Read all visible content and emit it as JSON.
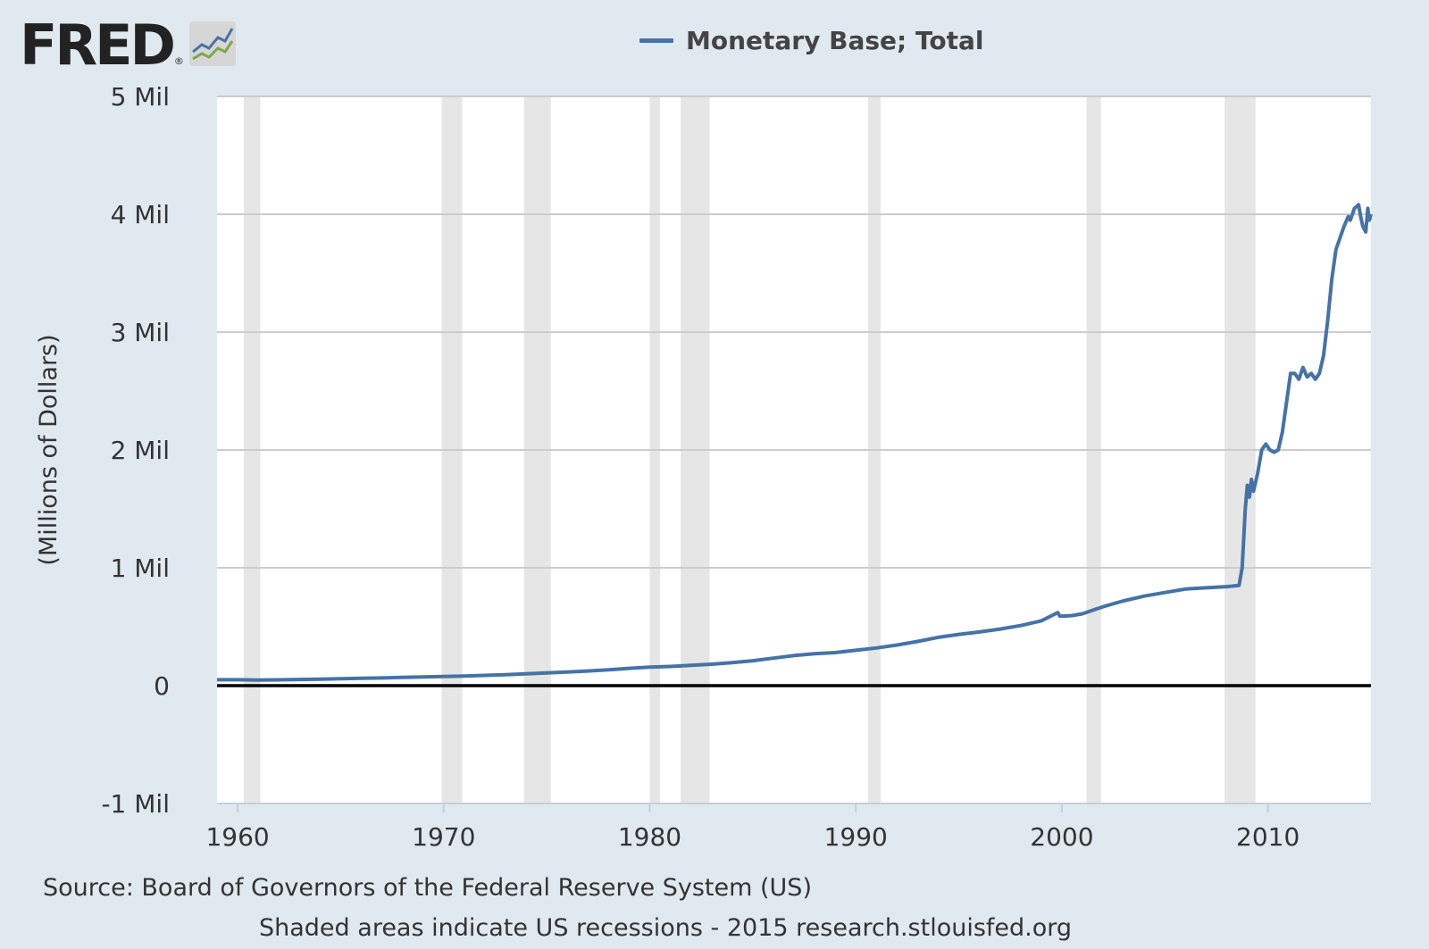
{
  "brand": {
    "name": "FRED",
    "registered_mark": "®",
    "icon": "fred-line-chart-icon"
  },
  "colors": {
    "background": "#e1e9f0",
    "plot_background": "#ffffff",
    "series_line": "#4572a7",
    "recession_shade": "#e6e6e6",
    "gridline": "#cccccc",
    "zero_line": "#000000"
  },
  "chart_data": {
    "type": "line",
    "legend_position": "top-center",
    "grid": true,
    "xlim": [
      1959.0,
      2015.0
    ],
    "ylim": [
      -1000000,
      5000000
    ],
    "y_ticks": [
      {
        "value": 5000000,
        "label": "5 Mil"
      },
      {
        "value": 4000000,
        "label": "4 Mil"
      },
      {
        "value": 3000000,
        "label": "3 Mil"
      },
      {
        "value": 2000000,
        "label": "2 Mil"
      },
      {
        "value": 1000000,
        "label": "1 Mil"
      },
      {
        "value": 0,
        "label": "0"
      },
      {
        "value": -1000000,
        "label": "-1 Mil"
      }
    ],
    "x_ticks": [
      {
        "value": 1960,
        "label": "1960"
      },
      {
        "value": 1970,
        "label": "1970"
      },
      {
        "value": 1980,
        "label": "1980"
      },
      {
        "value": 1990,
        "label": "1990"
      },
      {
        "value": 2000,
        "label": "2000"
      },
      {
        "value": 2010,
        "label": "2010"
      }
    ],
    "ylabel": "(Millions of Dollars)",
    "recessions": [
      [
        1960.3,
        1961.1
      ],
      [
        1969.9,
        1970.9
      ],
      [
        1973.9,
        1975.2
      ],
      [
        1980.0,
        1980.5
      ],
      [
        1981.5,
        1982.9
      ],
      [
        1990.6,
        1991.2
      ],
      [
        2001.2,
        2001.9
      ],
      [
        2007.9,
        2009.4
      ]
    ],
    "series": [
      {
        "name": "Monetary Base; Total",
        "x": [
          1959.0,
          1960.0,
          1961.0,
          1962.0,
          1963.0,
          1964.0,
          1965.0,
          1966.0,
          1967.0,
          1968.0,
          1969.0,
          1970.0,
          1971.0,
          1972.0,
          1973.0,
          1974.0,
          1975.0,
          1976.0,
          1977.0,
          1978.0,
          1979.0,
          1980.0,
          1981.0,
          1982.0,
          1983.0,
          1984.0,
          1985.0,
          1986.0,
          1987.0,
          1988.0,
          1989.0,
          1990.0,
          1991.0,
          1992.0,
          1993.0,
          1994.0,
          1995.0,
          1996.0,
          1997.0,
          1998.0,
          1999.0,
          1999.8,
          1999.9,
          2000.1,
          2000.5,
          2001.0,
          2001.5,
          2002.0,
          2003.0,
          2004.0,
          2005.0,
          2006.0,
          2007.0,
          2008.0,
          2008.6,
          2008.75,
          2008.9,
          2009.0,
          2009.1,
          2009.2,
          2009.3,
          2009.5,
          2009.7,
          2009.9,
          2010.1,
          2010.3,
          2010.5,
          2010.7,
          2010.9,
          2011.1,
          2011.3,
          2011.5,
          2011.7,
          2011.9,
          2012.1,
          2012.3,
          2012.5,
          2012.7,
          2012.9,
          2013.1,
          2013.3,
          2013.5,
          2013.7,
          2013.9,
          2014.0,
          2014.2,
          2014.4,
          2014.5,
          2014.6,
          2014.75,
          2014.85,
          2014.92,
          2015.0
        ],
        "values": [
          50000,
          50000,
          47000,
          49000,
          52000,
          55000,
          59000,
          62000,
          65000,
          70000,
          74000,
          77000,
          82000,
          87000,
          93000,
          101000,
          108000,
          115000,
          124000,
          135000,
          147000,
          157000,
          163000,
          172000,
          182000,
          195000,
          211000,
          233000,
          255000,
          271000,
          280000,
          300000,
          320000,
          345000,
          375000,
          410000,
          435000,
          455000,
          480000,
          510000,
          550000,
          620000,
          590000,
          590000,
          595000,
          610000,
          640000,
          670000,
          720000,
          760000,
          790000,
          820000,
          830000,
          840000,
          850000,
          1000000,
          1500000,
          1700000,
          1600000,
          1750000,
          1650000,
          1800000,
          2000000,
          2050000,
          2000000,
          1980000,
          2000000,
          2150000,
          2400000,
          2650000,
          2650000,
          2600000,
          2700000,
          2620000,
          2650000,
          2600000,
          2650000,
          2800000,
          3100000,
          3450000,
          3700000,
          3800000,
          3900000,
          3980000,
          3950000,
          4050000,
          4080000,
          3980000,
          3900000,
          3850000,
          4050000,
          3950000,
          4000000
        ]
      }
    ]
  },
  "footer": {
    "source": "Source: Board of Governors of the Federal Reserve System (US)",
    "note": "Shaded areas indicate US recessions - 2015 research.stlouisfed.org"
  }
}
